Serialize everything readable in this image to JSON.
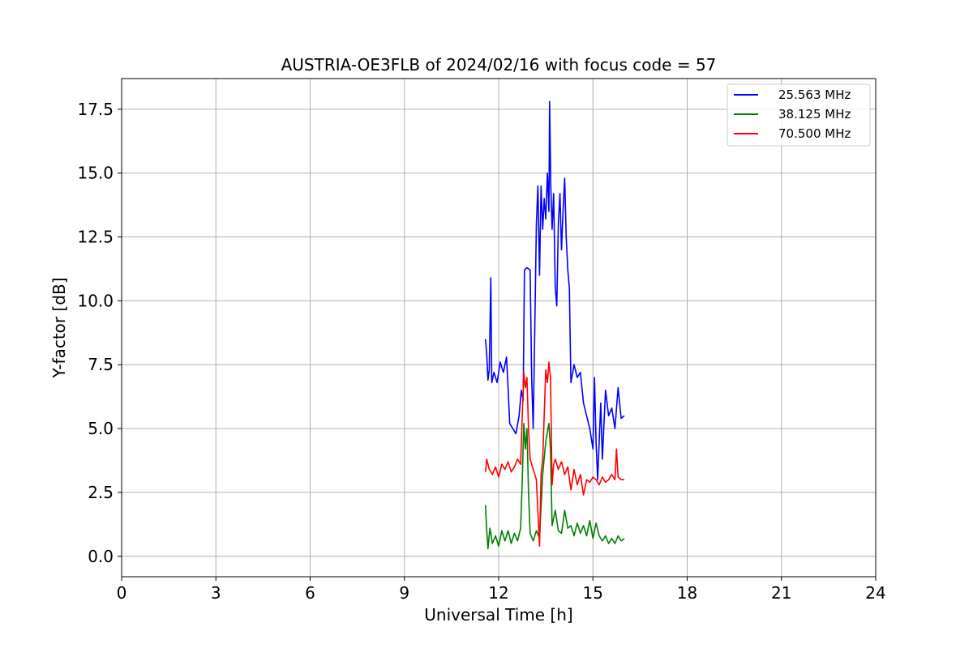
{
  "chart_data": {
    "type": "line",
    "title": "AUSTRIA-OE3FLB of 2024/02/16 with focus code = 57",
    "xlabel": "Universal Time [h]",
    "ylabel": "Y-factor [dB]",
    "xlim": [
      0,
      24
    ],
    "ylim": [
      -0.8,
      18.7
    ],
    "xticks": [
      0,
      3,
      6,
      9,
      12,
      15,
      18,
      21,
      24
    ],
    "xtick_labels": [
      "0",
      "3",
      "6",
      "9",
      "12",
      "15",
      "18",
      "21",
      "24"
    ],
    "yticks": [
      0,
      2.5,
      5,
      7.5,
      10,
      12.5,
      15,
      17.5
    ],
    "ytick_labels": [
      "0.0",
      "2.5",
      "5.0",
      "7.5",
      "10.0",
      "12.5",
      "15.0",
      "17.5"
    ],
    "grid": true,
    "legend_position": "top-right",
    "series": [
      {
        "name": "25.563 MHz",
        "color": "#0000ff",
        "points": [
          [
            11.58,
            8.5
          ],
          [
            11.62,
            7.9
          ],
          [
            11.66,
            6.9
          ],
          [
            11.7,
            7.3
          ],
          [
            11.75,
            10.9
          ],
          [
            11.78,
            6.8
          ],
          [
            11.85,
            7.2
          ],
          [
            11.95,
            6.8
          ],
          [
            12.05,
            7.6
          ],
          [
            12.15,
            7.2
          ],
          [
            12.25,
            7.8
          ],
          [
            12.3,
            6.6
          ],
          [
            12.35,
            5.2
          ],
          [
            12.45,
            5.0
          ],
          [
            12.55,
            4.8
          ],
          [
            12.65,
            5.5
          ],
          [
            12.72,
            6.5
          ],
          [
            12.78,
            6.1
          ],
          [
            12.82,
            11.2
          ],
          [
            12.9,
            11.3
          ],
          [
            13.0,
            11.2
          ],
          [
            13.05,
            7.0
          ],
          [
            13.1,
            5.0
          ],
          [
            13.15,
            9.0
          ],
          [
            13.2,
            13.0
          ],
          [
            13.25,
            14.5
          ],
          [
            13.3,
            11.0
          ],
          [
            13.35,
            14.5
          ],
          [
            13.4,
            12.8
          ],
          [
            13.45,
            14.0
          ],
          [
            13.5,
            13.2
          ],
          [
            13.55,
            15.0
          ],
          [
            13.6,
            13.5
          ],
          [
            13.62,
            17.8
          ],
          [
            13.66,
            14.5
          ],
          [
            13.7,
            12.8
          ],
          [
            13.75,
            14.2
          ],
          [
            13.8,
            10.5
          ],
          [
            13.85,
            9.8
          ],
          [
            13.9,
            13.0
          ],
          [
            13.95,
            14.2
          ],
          [
            14.0,
            12.0
          ],
          [
            14.05,
            13.5
          ],
          [
            14.1,
            14.8
          ],
          [
            14.15,
            12.5
          ],
          [
            14.2,
            11.2
          ],
          [
            14.25,
            10.5
          ],
          [
            14.3,
            6.8
          ],
          [
            14.4,
            7.5
          ],
          [
            14.5,
            7.0
          ],
          [
            14.6,
            7.2
          ],
          [
            14.7,
            6.0
          ],
          [
            14.8,
            5.5
          ],
          [
            14.9,
            5.0
          ],
          [
            15.0,
            4.2
          ],
          [
            15.05,
            7.0
          ],
          [
            15.1,
            4.5
          ],
          [
            15.15,
            3.0
          ],
          [
            15.2,
            4.5
          ],
          [
            15.25,
            6.0
          ],
          [
            15.3,
            3.8
          ],
          [
            15.4,
            6.5
          ],
          [
            15.5,
            5.5
          ],
          [
            15.6,
            5.8
          ],
          [
            15.7,
            5.0
          ],
          [
            15.8,
            6.6
          ],
          [
            15.9,
            5.4
          ],
          [
            16.0,
            5.5
          ]
        ]
      },
      {
        "name": "38.125 MHz",
        "color": "#008000",
        "points": [
          [
            11.58,
            2.0
          ],
          [
            11.62,
            1.0
          ],
          [
            11.66,
            0.3
          ],
          [
            11.72,
            1.1
          ],
          [
            11.8,
            0.5
          ],
          [
            11.9,
            0.8
          ],
          [
            12.0,
            0.4
          ],
          [
            12.1,
            1.0
          ],
          [
            12.2,
            0.6
          ],
          [
            12.3,
            1.0
          ],
          [
            12.4,
            0.5
          ],
          [
            12.5,
            0.9
          ],
          [
            12.6,
            0.6
          ],
          [
            12.7,
            1.1
          ],
          [
            12.75,
            3.0
          ],
          [
            12.8,
            5.2
          ],
          [
            12.85,
            4.2
          ],
          [
            12.9,
            5.0
          ],
          [
            12.95,
            2.5
          ],
          [
            13.0,
            0.9
          ],
          [
            13.1,
            0.6
          ],
          [
            13.2,
            1.0
          ],
          [
            13.3,
            0.7
          ],
          [
            13.4,
            3.2
          ],
          [
            13.5,
            4.5
          ],
          [
            13.6,
            5.2
          ],
          [
            13.65,
            4.2
          ],
          [
            13.7,
            1.2
          ],
          [
            13.8,
            1.8
          ],
          [
            13.9,
            1.0
          ],
          [
            14.0,
            0.9
          ],
          [
            14.1,
            1.8
          ],
          [
            14.2,
            1.1
          ],
          [
            14.3,
            1.2
          ],
          [
            14.4,
            0.8
          ],
          [
            14.5,
            1.3
          ],
          [
            14.6,
            0.9
          ],
          [
            14.7,
            1.2
          ],
          [
            14.8,
            0.8
          ],
          [
            14.9,
            1.4
          ],
          [
            15.0,
            0.7
          ],
          [
            15.1,
            1.3
          ],
          [
            15.2,
            0.8
          ],
          [
            15.3,
            0.6
          ],
          [
            15.4,
            0.8
          ],
          [
            15.5,
            0.5
          ],
          [
            15.6,
            0.7
          ],
          [
            15.7,
            0.5
          ],
          [
            15.8,
            0.8
          ],
          [
            15.9,
            0.6
          ],
          [
            16.0,
            0.7
          ]
        ]
      },
      {
        "name": "70.500 MHz",
        "color": "#ff0000",
        "points": [
          [
            11.58,
            3.3
          ],
          [
            11.62,
            3.8
          ],
          [
            11.7,
            3.4
          ],
          [
            11.8,
            3.2
          ],
          [
            11.9,
            3.5
          ],
          [
            12.0,
            3.1
          ],
          [
            12.1,
            3.6
          ],
          [
            12.2,
            3.4
          ],
          [
            12.3,
            3.7
          ],
          [
            12.4,
            3.3
          ],
          [
            12.5,
            3.5
          ],
          [
            12.6,
            3.8
          ],
          [
            12.7,
            3.6
          ],
          [
            12.75,
            5.5
          ],
          [
            12.8,
            7.2
          ],
          [
            12.85,
            6.6
          ],
          [
            12.9,
            7.0
          ],
          [
            12.95,
            5.0
          ],
          [
            13.0,
            3.8
          ],
          [
            13.1,
            3.4
          ],
          [
            13.2,
            3.0
          ],
          [
            13.3,
            0.4
          ],
          [
            13.35,
            3.2
          ],
          [
            13.4,
            3.8
          ],
          [
            13.5,
            7.3
          ],
          [
            13.55,
            6.8
          ],
          [
            13.6,
            7.6
          ],
          [
            13.65,
            7.0
          ],
          [
            13.7,
            2.8
          ],
          [
            13.75,
            3.6
          ],
          [
            13.8,
            3.8
          ],
          [
            13.9,
            3.4
          ],
          [
            14.0,
            3.7
          ],
          [
            14.1,
            3.2
          ],
          [
            14.2,
            3.5
          ],
          [
            14.3,
            2.6
          ],
          [
            14.4,
            3.4
          ],
          [
            14.5,
            2.8
          ],
          [
            14.6,
            3.2
          ],
          [
            14.7,
            2.4
          ],
          [
            14.8,
            3.0
          ],
          [
            14.9,
            2.9
          ],
          [
            15.0,
            3.1
          ],
          [
            15.1,
            3.0
          ],
          [
            15.2,
            2.8
          ],
          [
            15.3,
            3.1
          ],
          [
            15.4,
            2.9
          ],
          [
            15.5,
            3.0
          ],
          [
            15.6,
            3.2
          ],
          [
            15.7,
            3.0
          ],
          [
            15.75,
            4.2
          ],
          [
            15.8,
            3.1
          ],
          [
            15.9,
            3.0
          ],
          [
            16.0,
            3.0
          ]
        ]
      }
    ]
  }
}
